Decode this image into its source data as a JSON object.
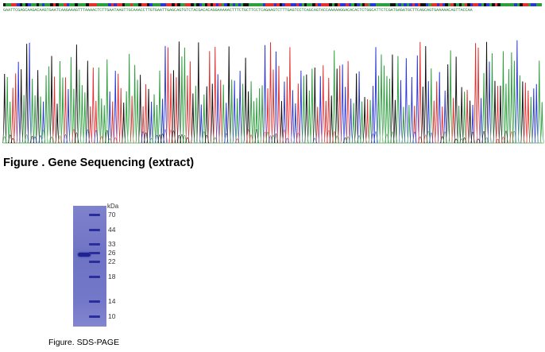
{
  "sequence": {
    "bases": "GAATTCGAGCAAGACAAGTGAATCAAGAAAGTTTAAAACTCTTGAATAAGTTGCAAACCTTGTGAATTGAGCAGTGTCTACGACACAGGAAAAACTTTCTGCTTCCTCAGAAGTCTTTGAGTCCTCAGCAGTACCAAAAAGGACACACTCTGGCATTCTCGATGAGATGCTTCAGCAGTGAAAAACAGTTACCAA",
    "base_colors": {
      "A": "#2e9e3e",
      "C": "#2c38d6",
      "G": "#111111",
      "T": "#e53030"
    }
  },
  "figure1_caption": "Figure . Gene Sequencing (extract)",
  "gel": {
    "unit": "kDa",
    "markers": [
      "70",
      "44",
      "33",
      "26",
      "22",
      "18",
      "14",
      "10"
    ],
    "band_color": "#1f2392",
    "background_color": "#7478c8"
  },
  "figure2_caption": "Figure. SDS-PAGE"
}
